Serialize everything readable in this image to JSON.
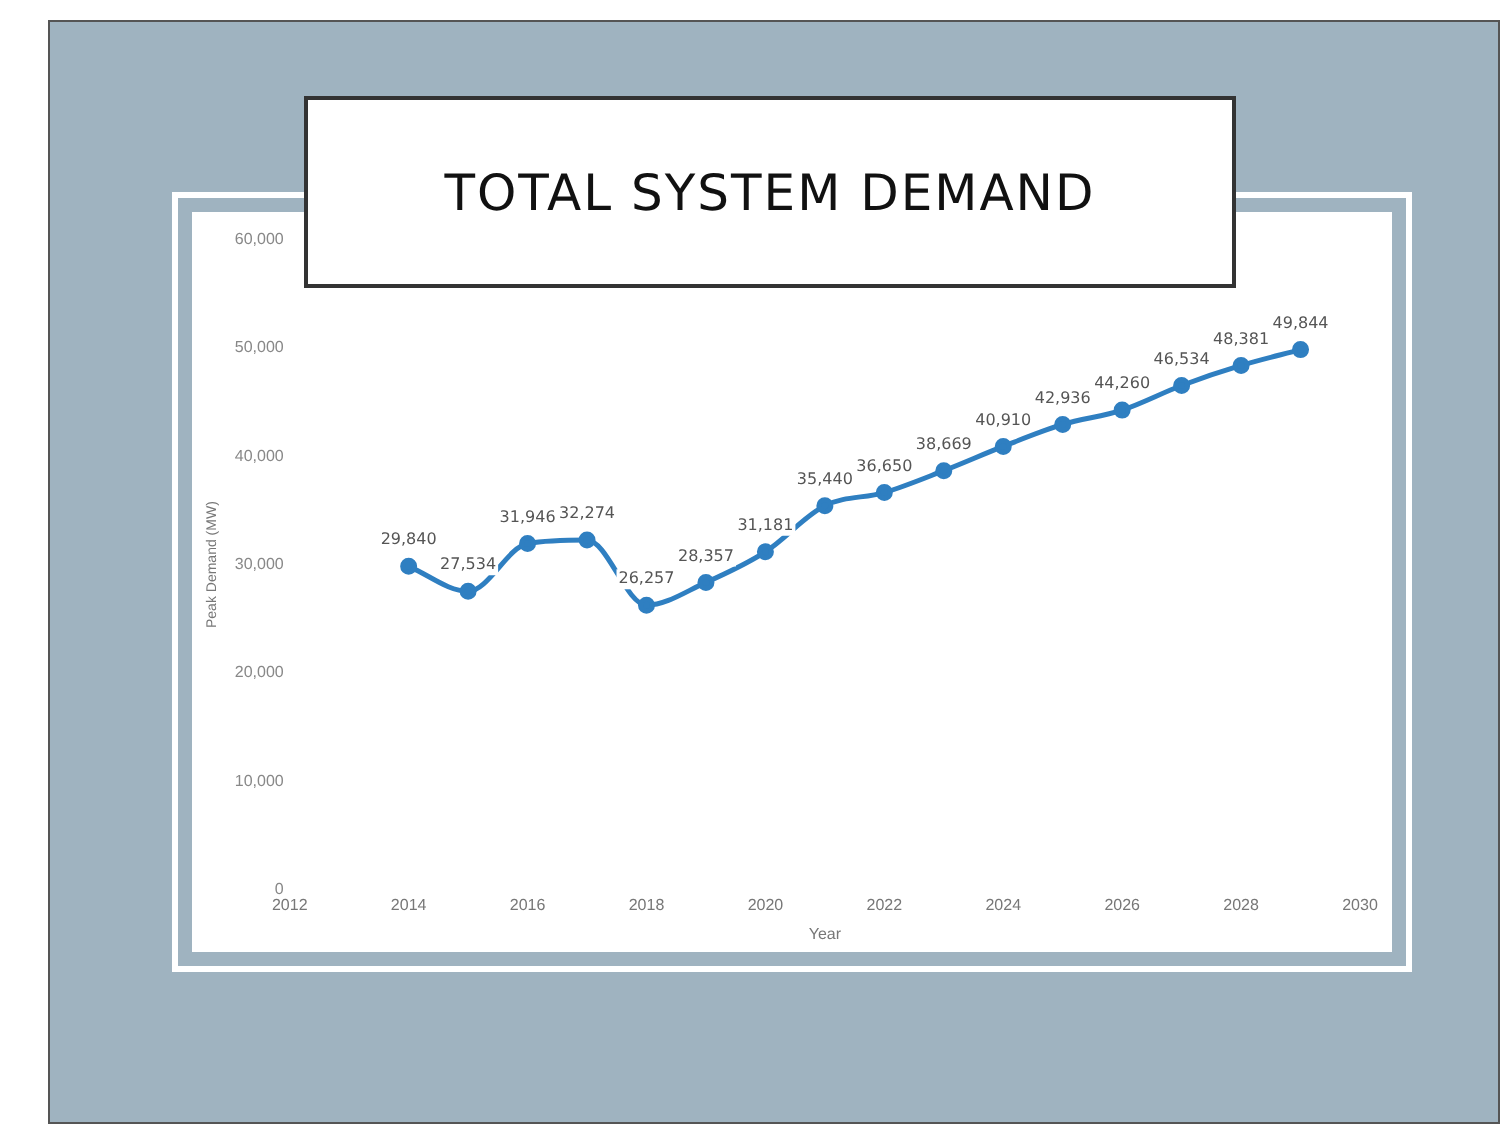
{
  "chart_data": {
    "type": "line",
    "title": "TOTAL SYSTEM DEMAND",
    "xlabel": "Year",
    "ylabel": "Peak Demand (MW)",
    "x": [
      2014,
      2015,
      2016,
      2017,
      2018,
      2019,
      2020,
      2021,
      2022,
      2023,
      2024,
      2025,
      2026,
      2027,
      2028,
      2029
    ],
    "series": [
      {
        "color": "#2f7fc1",
        "values": [
          29840,
          27534,
          31946,
          32274,
          26257,
          28357,
          31181,
          35440,
          36650,
          38669,
          40910,
          42936,
          44260,
          46534,
          48381,
          49844
        ],
        "value_labels": [
          "29,840",
          "27,534",
          "31,946",
          "32,274",
          "26,257",
          "28,357",
          "31,181",
          "35,440",
          "36,650",
          "38,669",
          "40,910",
          "42,936",
          "44,260",
          "46,534",
          "48,381",
          "49,844"
        ]
      }
    ],
    "xlim": [
      2012,
      2030
    ],
    "xticks": [
      2012,
      2014,
      2016,
      2018,
      2020,
      2022,
      2024,
      2026,
      2028,
      2030
    ],
    "ylim": [
      0,
      60000
    ],
    "yticks": [
      0,
      {
        "value": 10000,
        "label": "10,000"
      },
      {
        "value": 20000,
        "label": "20,000"
      },
      {
        "value": 30000,
        "label": "30,000"
      },
      {
        "value": 40000,
        "label": "40,000"
      },
      {
        "value": 50000,
        "label": "50,000"
      },
      {
        "value": 60000,
        "label": "60,000"
      }
    ],
    "grid": false,
    "legend": false,
    "marker": "circle",
    "line_style": "solid"
  }
}
